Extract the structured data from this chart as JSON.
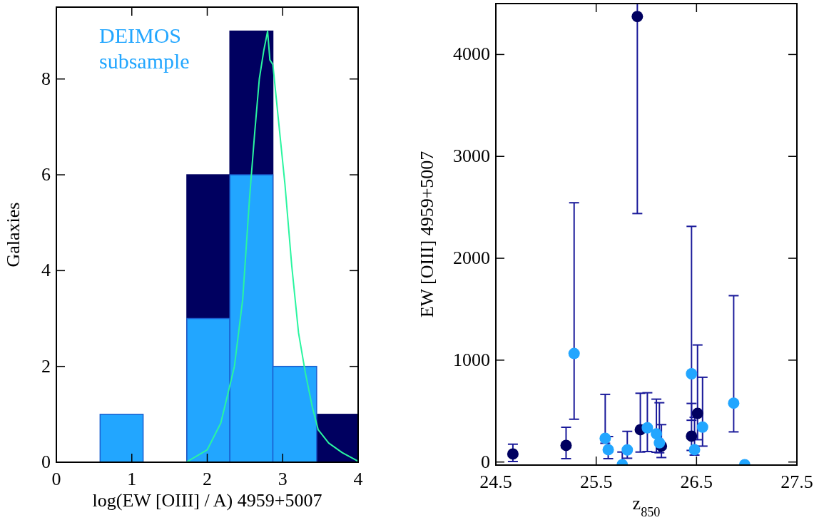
{
  "chart_data": [
    {
      "type": "histogram",
      "xlabel": "log(EW [OIII] / A) 4959+5007",
      "ylabel": "Galaxies",
      "bins": [
        0.58,
        1.15,
        1.73,
        2.3,
        2.87,
        3.45,
        4.0
      ],
      "series": [
        {
          "color": "#000060",
          "values": [
            null,
            0,
            6,
            9,
            null,
            1
          ]
        },
        {
          "name": "DEIMOS subsample",
          "color": "#22a6ff",
          "values": [
            1,
            0,
            3,
            6,
            2,
            0
          ]
        },
        {
          "type": "line",
          "color": "#2af5a0",
          "x": [
            1.72,
            2.0,
            2.18,
            2.36,
            2.47,
            2.56,
            2.63,
            2.69,
            2.75,
            2.8,
            2.83,
            2.87,
            2.94,
            3.03,
            3.12,
            3.21,
            3.3,
            3.39,
            3.47,
            3.61,
            3.79,
            4.0
          ],
          "values": [
            0,
            0.26,
            0.82,
            2.0,
            3.4,
            5.5,
            6.9,
            8.0,
            8.6,
            9.0,
            8.4,
            8.3,
            7.2,
            5.8,
            4.1,
            2.7,
            1.87,
            1.17,
            0.68,
            0.4,
            0.2,
            0.02
          ]
        }
      ],
      "xlim": [
        0,
        4
      ],
      "xticks": [
        0,
        1,
        2,
        3,
        4
      ],
      "ylim": [
        0,
        9.5
      ],
      "yticks": [
        0,
        2,
        4,
        6,
        8
      ],
      "legend": "top left",
      "grid": false
    },
    {
      "type": "scatter",
      "xlabel": "z$_{850}$",
      "ylabel": "EW [OIII] 4959+5007",
      "marker": "circle",
      "series": [
        {
          "color": "#000060",
          "x": [
            24.67,
            25.2,
            25.91,
            25.94,
            26.15,
            26.45,
            26.51
          ],
          "values": [
            79,
            163,
            4373,
            317,
            156,
            254,
            477
          ],
          "errors": [
            [
              5,
              175
            ],
            [
              33,
              341
            ],
            [
              2439,
              4500
            ],
            [
              98,
              675
            ],
            [
              44,
              367
            ],
            [
              114,
              575
            ],
            [
              219,
              1149
            ]
          ]
        },
        {
          "color": "#22a6ff",
          "x": [
            25.28,
            25.59,
            25.62,
            25.76,
            25.81,
            26.01,
            26.1,
            26.13,
            26.45,
            26.48,
            26.56,
            26.87,
            26.98
          ],
          "values": [
            1065,
            233,
            121,
            -26,
            119,
            336,
            277,
            188,
            866,
            121,
            343,
            578,
            -26
          ],
          "errors": [
            [
              420,
              2545
            ],
            [
              184,
              664
            ],
            [
              33,
              250
            ],
            [
              -30,
              98
            ],
            [
              37,
              301
            ],
            [
              103,
              680
            ],
            [
              96,
              617
            ],
            [
              91,
              582
            ],
            [
              410,
              2313
            ],
            [
              68,
              439
            ],
            [
              156,
              832
            ],
            [
              296,
              1633
            ],
            null
          ]
        }
      ],
      "xlim": [
        24.5,
        27.5
      ],
      "xticks": [
        24.5,
        25.5,
        26.5,
        27.5
      ],
      "ylim": [
        -30,
        4500
      ],
      "yticks": [
        0,
        1000,
        2000,
        3000,
        4000
      ],
      "grid": false
    }
  ]
}
